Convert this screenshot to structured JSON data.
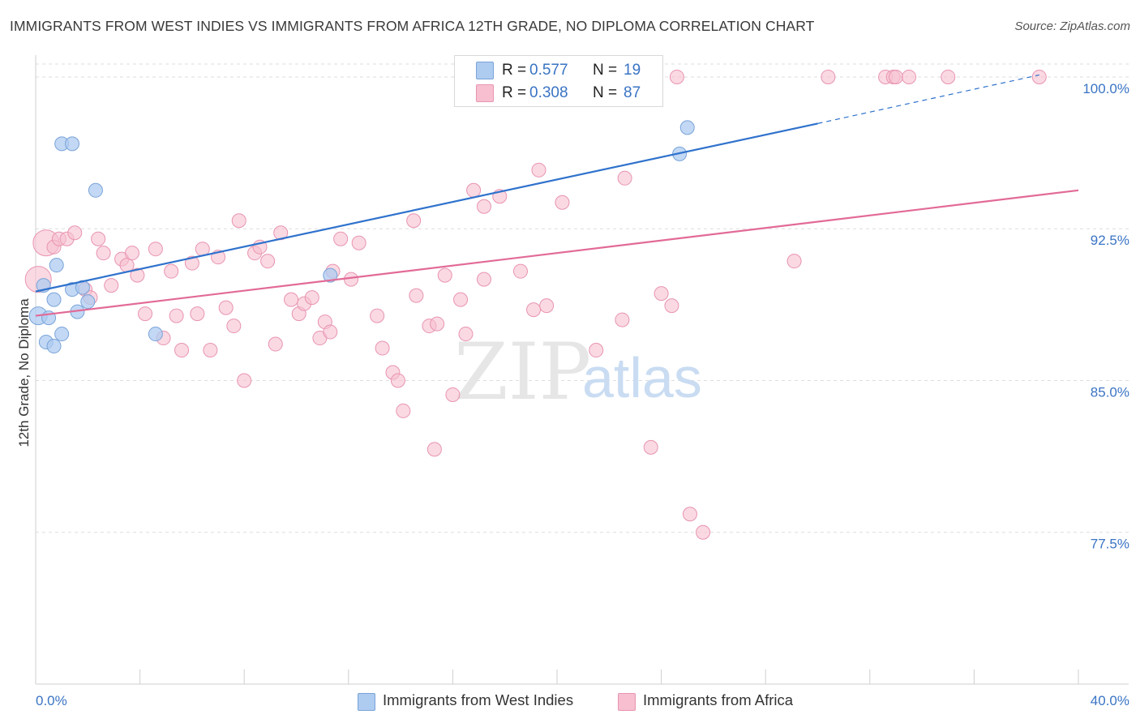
{
  "header": {
    "title": "IMMIGRANTS FROM WEST INDIES VS IMMIGRANTS FROM AFRICA 12TH GRADE, NO DIPLOMA CORRELATION CHART",
    "source": "Source: ZipAtlas.com"
  },
  "watermark": {
    "zip": "ZIP",
    "atlas": "atlas"
  },
  "legend": {
    "rows": [
      {
        "r_label": "R =",
        "r_value": "0.577",
        "n_label": "N =",
        "n_value": "19"
      },
      {
        "r_label": "R =",
        "r_value": "0.308",
        "n_label": "N =",
        "n_value": "87"
      }
    ]
  },
  "colors": {
    "west_indies_fill": "#aecbf0",
    "west_indies_stroke": "#7aa4d9",
    "west_indies_line": "#2f72cc",
    "africa_fill": "#f7bfd0",
    "africa_stroke": "#e894b0",
    "africa_line": "#e26a97",
    "axis_label_blue": "#3a74c4",
    "grid": "#dedede"
  },
  "chart_data": {
    "type": "scatter",
    "title": "IMMIGRANTS FROM WEST INDIES VS IMMIGRANTS FROM AFRICA 12TH GRADE, NO DIPLOMA CORRELATION CHART",
    "xlabel": "",
    "ylabel": "12th Grade, No Diploma",
    "xlim": [
      0,
      40
    ],
    "ylim": [
      70,
      101
    ],
    "x_tick_labels": [
      "0.0%",
      "40.0%"
    ],
    "y_ticks": [
      77.5,
      85.0,
      92.5,
      100.0
    ],
    "y_tick_labels": [
      "77.5%",
      "85.0%",
      "92.5%",
      "100.0%"
    ],
    "grid": true,
    "legend_position": "top-center",
    "series": [
      {
        "name": "Immigrants from West Indies",
        "R": 0.577,
        "N": 19,
        "points": [
          [
            0.1,
            88.2
          ],
          [
            0.3,
            89.7
          ],
          [
            0.4,
            86.9
          ],
          [
            0.5,
            88.1
          ],
          [
            0.7,
            86.7
          ],
          [
            0.7,
            89.0
          ],
          [
            0.8,
            90.7
          ],
          [
            1.0,
            87.3
          ],
          [
            1.0,
            96.7
          ],
          [
            1.4,
            96.7
          ],
          [
            1.4,
            89.5
          ],
          [
            1.6,
            88.4
          ],
          [
            1.8,
            89.6
          ],
          [
            2.0,
            88.9
          ],
          [
            2.3,
            94.4
          ],
          [
            4.6,
            87.3
          ],
          [
            11.3,
            90.2
          ],
          [
            24.7,
            96.2
          ],
          [
            25.0,
            97.5
          ]
        ],
        "trend": {
          "x0": 0,
          "y0": 89.4,
          "x1": 30,
          "y1": 97.7,
          "dashed_to_x": 38.5,
          "dashed_to_y": 100.1
        }
      },
      {
        "name": "Immigrants from Africa",
        "R": 0.308,
        "N": 87,
        "points": [
          [
            0.1,
            90.0
          ],
          [
            0.4,
            91.8
          ],
          [
            0.7,
            91.6
          ],
          [
            0.9,
            92.0
          ],
          [
            1.2,
            92.0
          ],
          [
            1.5,
            92.3
          ],
          [
            1.9,
            89.5
          ],
          [
            2.1,
            89.1
          ],
          [
            2.4,
            92.0
          ],
          [
            2.6,
            91.3
          ],
          [
            2.9,
            89.7
          ],
          [
            3.3,
            91.0
          ],
          [
            3.5,
            90.7
          ],
          [
            3.7,
            91.3
          ],
          [
            3.9,
            90.2
          ],
          [
            4.2,
            88.3
          ],
          [
            4.6,
            91.5
          ],
          [
            4.9,
            87.1
          ],
          [
            5.2,
            90.4
          ],
          [
            5.4,
            88.2
          ],
          [
            5.6,
            86.5
          ],
          [
            6.0,
            90.8
          ],
          [
            6.2,
            88.3
          ],
          [
            6.4,
            91.5
          ],
          [
            6.7,
            86.5
          ],
          [
            7.0,
            91.1
          ],
          [
            7.3,
            88.6
          ],
          [
            7.6,
            87.7
          ],
          [
            7.8,
            92.9
          ],
          [
            8.0,
            85.0
          ],
          [
            8.4,
            91.3
          ],
          [
            8.6,
            91.6
          ],
          [
            8.9,
            90.9
          ],
          [
            9.2,
            86.8
          ],
          [
            9.4,
            92.3
          ],
          [
            9.8,
            89.0
          ],
          [
            10.1,
            88.3
          ],
          [
            10.3,
            88.8
          ],
          [
            10.6,
            89.1
          ],
          [
            10.9,
            87.1
          ],
          [
            11.1,
            87.9
          ],
          [
            11.3,
            87.4
          ],
          [
            11.4,
            90.4
          ],
          [
            11.7,
            92.0
          ],
          [
            12.1,
            90.0
          ],
          [
            12.4,
            91.8
          ],
          [
            13.1,
            88.2
          ],
          [
            13.3,
            86.6
          ],
          [
            13.7,
            85.4
          ],
          [
            13.9,
            85.0
          ],
          [
            14.1,
            83.5
          ],
          [
            14.5,
            92.9
          ],
          [
            14.6,
            89.2
          ],
          [
            15.1,
            87.7
          ],
          [
            15.3,
            81.6
          ],
          [
            15.4,
            87.8
          ],
          [
            15.7,
            90.2
          ],
          [
            16.0,
            84.3
          ],
          [
            16.3,
            89.0
          ],
          [
            16.5,
            87.3
          ],
          [
            16.8,
            94.4
          ],
          [
            17.2,
            93.6
          ],
          [
            17.2,
            90.0
          ],
          [
            17.8,
            94.1
          ],
          [
            18.6,
            90.4
          ],
          [
            19.1,
            88.5
          ],
          [
            19.3,
            95.4
          ],
          [
            19.6,
            88.7
          ],
          [
            20.2,
            93.8
          ],
          [
            21.5,
            86.5
          ],
          [
            22.5,
            88.0
          ],
          [
            22.6,
            95.0
          ],
          [
            23.6,
            81.7
          ],
          [
            24.0,
            89.3
          ],
          [
            24.4,
            88.7
          ],
          [
            24.6,
            100.0
          ],
          [
            25.1,
            78.4
          ],
          [
            25.6,
            77.5
          ],
          [
            29.1,
            90.9
          ],
          [
            30.4,
            100.0
          ],
          [
            32.6,
            100.0
          ],
          [
            32.9,
            100.0
          ],
          [
            33.0,
            100.0
          ],
          [
            33.5,
            100.0
          ],
          [
            35.0,
            100.0
          ],
          [
            38.5,
            100.0
          ],
          [
            22.0,
            100.0
          ]
        ],
        "trend": {
          "x0": 0,
          "y0": 88.2,
          "x1": 40,
          "y1": 94.4
        }
      }
    ]
  }
}
